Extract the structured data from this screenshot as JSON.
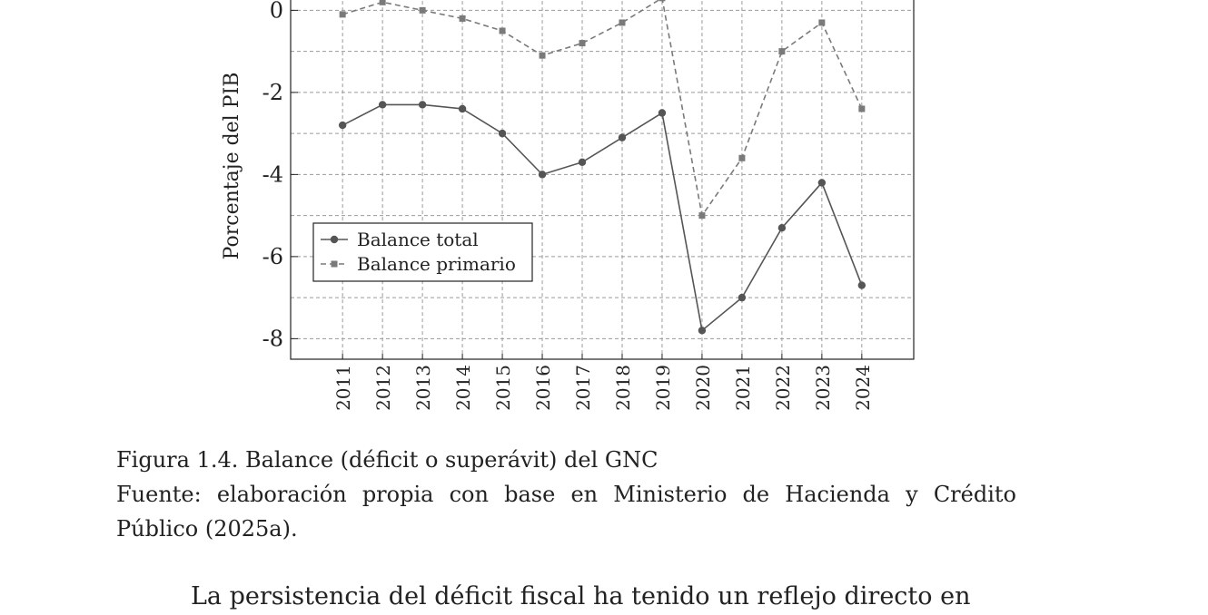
{
  "chart_data": {
    "type": "line",
    "y_label": "Porcentaje del PIB",
    "x": [
      2011,
      2012,
      2013,
      2014,
      2015,
      2016,
      2017,
      2018,
      2019,
      2020,
      2021,
      2022,
      2023,
      2024
    ],
    "xlim": [
      2009.7,
      2025.3
    ],
    "xticks": [
      2011,
      2012,
      2013,
      2014,
      2015,
      2016,
      2017,
      2018,
      2019,
      2020,
      2021,
      2022,
      2023,
      2024
    ],
    "ylim": [
      -8.5,
      1
    ],
    "yticks": [
      -8,
      -6,
      -4,
      -2,
      0
    ],
    "y_minor_ticks": [
      -7,
      -5,
      -3,
      -1
    ],
    "grid": true,
    "legend": "lower left",
    "series": [
      {
        "name": "Balance total",
        "color": "#555555",
        "style": "solid",
        "marker": "circle",
        "values": [
          -2.8,
          -2.3,
          -2.3,
          -2.4,
          -3.0,
          -4.0,
          -3.7,
          -3.1,
          -2.5,
          -7.8,
          -7.0,
          -5.3,
          -4.2,
          -6.7
        ]
      },
      {
        "name": "Balance primario",
        "color": "#7a7a7a",
        "style": "dashed",
        "marker": "square",
        "values": [
          -0.1,
          0.2,
          0.0,
          -0.2,
          -0.5,
          -1.1,
          -0.8,
          -0.3,
          0.3,
          -5.0,
          -3.6,
          -1.0,
          -0.3,
          -2.4
        ]
      }
    ]
  },
  "caption": {
    "figure": "Figura 1.4. Balance (déficit o superávit) del GNC",
    "source": "Fuente: elaboración propia con base en Ministerio de Hacienda y Crédito Público (2025a)."
  },
  "paragraph": "La persistencia del déficit fiscal ha tenido un reflejo directo en"
}
